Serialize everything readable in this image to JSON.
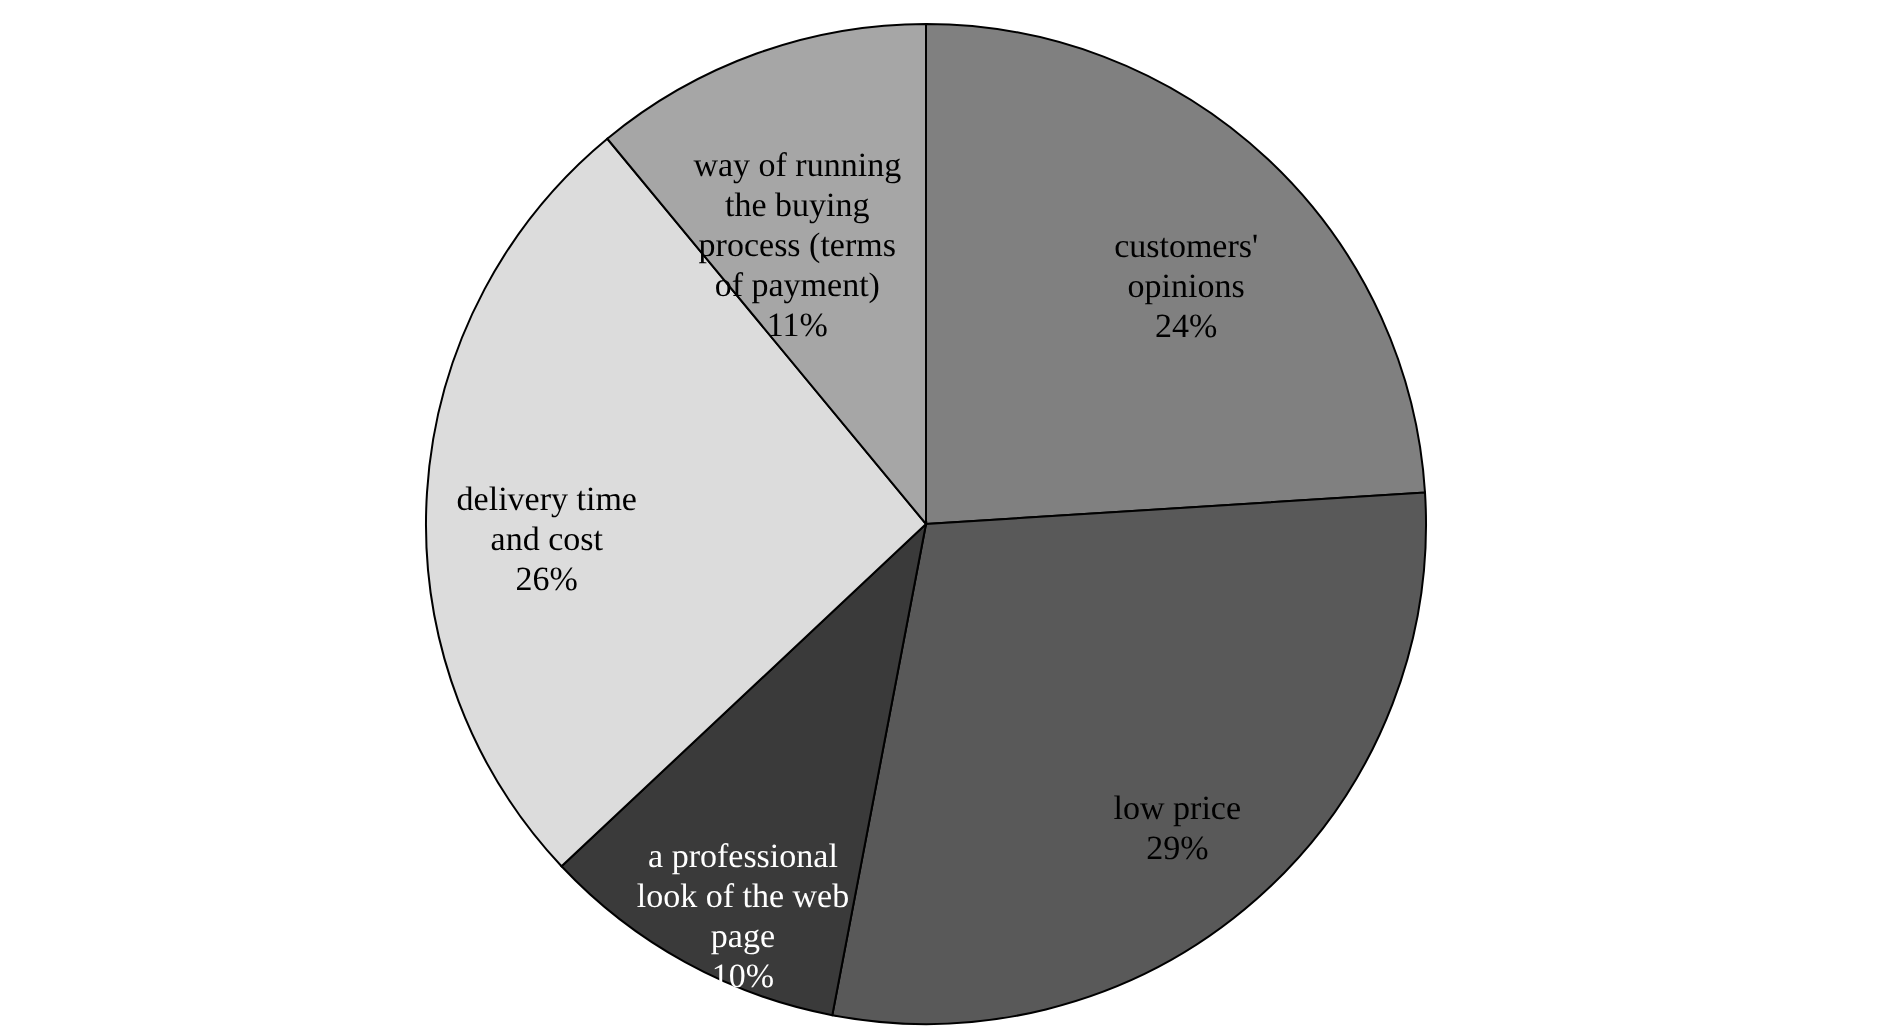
{
  "chart_data": {
    "type": "pie",
    "categories": [
      "customers' opinions",
      "low price",
      "a professional look of the web page",
      "delivery time and cost",
      "way of running the buying process (terms of payment)"
    ],
    "values": [
      24,
      29,
      10,
      26,
      11
    ],
    "value_labels": [
      "24%",
      "29%",
      "10%",
      "26%",
      "11%"
    ],
    "colors": [
      "#808080",
      "#595959",
      "#3a3a3a",
      "#dcdcdc",
      "#a6a6a6"
    ]
  }
}
